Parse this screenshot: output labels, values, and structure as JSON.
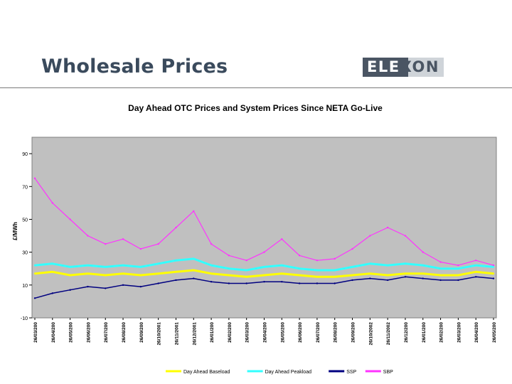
{
  "slide": {
    "title": "Wholesale Prices",
    "logo_text_left": "ELE",
    "logo_text_right": "XON"
  },
  "colors": {
    "plot_bg": "#c0c0c0",
    "baseload": "#ffff00",
    "peakload": "#33ffff",
    "ssp": "#000080",
    "sbp": "#ff33ff"
  },
  "chart_data": {
    "type": "line",
    "title": "Day Ahead OTC Prices and System Prices Since NETA Go-Live",
    "ylabel": "£/MWh",
    "ylim": [
      -10,
      100
    ],
    "yticks": [
      -10,
      10,
      30,
      50,
      70,
      90
    ],
    "grid": false,
    "legend_position": "bottom",
    "categories": [
      "26/03/200",
      "26/04/200",
      "26/05/200",
      "26/06/200",
      "26/07/200",
      "26/08/200",
      "26/09/200",
      "26/10/2001",
      "26/11/2001",
      "26/12/2001",
      "26/01/200",
      "26/02/200",
      "26/03/200",
      "26/04/200",
      "26/05/200",
      "26/06/200",
      "26/07/200",
      "26/08/200",
      "26/09/200",
      "26/10/2002",
      "26/11/2002",
      "26/12/200",
      "26/01/200",
      "26/02/200",
      "26/03/200",
      "26/04/200",
      "26/05/200"
    ],
    "series": [
      {
        "name": "Day Ahead Baseload",
        "values": [
          17,
          18,
          16,
          17,
          16,
          17,
          16,
          17,
          18,
          19,
          17,
          16,
          15,
          16,
          17,
          16,
          15,
          15,
          16,
          17,
          16,
          17,
          17,
          16,
          16,
          18,
          17
        ]
      },
      {
        "name": "Day Ahead Peakload",
        "values": [
          22,
          23,
          21,
          22,
          21,
          22,
          21,
          23,
          25,
          26,
          22,
          20,
          19,
          21,
          22,
          20,
          19,
          19,
          21,
          23,
          22,
          23,
          22,
          20,
          20,
          22,
          21
        ]
      },
      {
        "name": "SSP",
        "values": [
          2,
          5,
          7,
          9,
          8,
          10,
          9,
          11,
          13,
          14,
          12,
          11,
          11,
          12,
          12,
          11,
          11,
          11,
          13,
          14,
          13,
          15,
          14,
          13,
          13,
          15,
          14
        ]
      },
      {
        "name": "SBP",
        "values": [
          75,
          60,
          50,
          40,
          35,
          38,
          32,
          35,
          45,
          55,
          35,
          28,
          25,
          30,
          38,
          28,
          25,
          26,
          32,
          40,
          45,
          40,
          30,
          24,
          22,
          25,
          22
        ]
      }
    ]
  }
}
